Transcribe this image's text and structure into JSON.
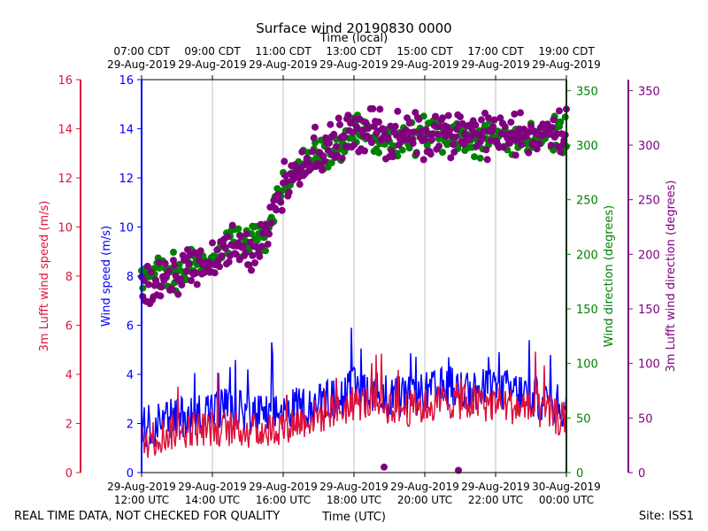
{
  "chart_data": {
    "type": "line",
    "title": "Surface wind 20190830 0000",
    "top_axis_label": "Time (local)",
    "xlabel": "Time (UTC)",
    "footer_left": "REAL TIME DATA, NOT CHECKED FOR QUALITY",
    "footer_right": "Site: ISS1",
    "x_range_hours_utc": [
      12,
      24
    ],
    "x_ticks_utc": [
      {
        "hour": 12,
        "line1": "29-Aug-2019",
        "line2": "12:00 UTC"
      },
      {
        "hour": 14,
        "line1": "29-Aug-2019",
        "line2": "14:00 UTC"
      },
      {
        "hour": 16,
        "line1": "29-Aug-2019",
        "line2": "16:00 UTC"
      },
      {
        "hour": 18,
        "line1": "29-Aug-2019",
        "line2": "18:00 UTC"
      },
      {
        "hour": 20,
        "line1": "29-Aug-2019",
        "line2": "20:00 UTC"
      },
      {
        "hour": 22,
        "line1": "29-Aug-2019",
        "line2": "22:00 UTC"
      },
      {
        "hour": 24,
        "line1": "30-Aug-2019",
        "line2": "00:00 UTC"
      }
    ],
    "x_ticks_local": [
      {
        "hour": 12,
        "line1": "07:00 CDT",
        "line2": "29-Aug-2019"
      },
      {
        "hour": 14,
        "line1": "09:00 CDT",
        "line2": "29-Aug-2019"
      },
      {
        "hour": 16,
        "line1": "11:00 CDT",
        "line2": "29-Aug-2019"
      },
      {
        "hour": 18,
        "line1": "13:00 CDT",
        "line2": "29-Aug-2019"
      },
      {
        "hour": 20,
        "line1": "15:00 CDT",
        "line2": "29-Aug-2019"
      },
      {
        "hour": 22,
        "line1": "17:00 CDT",
        "line2": "29-Aug-2019"
      },
      {
        "hour": 24,
        "line1": "19:00 CDT",
        "line2": "29-Aug-2019"
      }
    ],
    "axes": {
      "speed_lufft": {
        "label": "3m Lufft wind speed (m/s)",
        "ylim": [
          0,
          16
        ],
        "ticks": [
          0,
          2,
          4,
          6,
          8,
          10,
          12,
          14,
          16
        ],
        "color": "#dc143c"
      },
      "speed": {
        "label": "Wind speed (m/s)",
        "ylim": [
          0,
          16
        ],
        "ticks": [
          0,
          2,
          4,
          6,
          8,
          10,
          12,
          14,
          16
        ],
        "color": "#0000ff"
      },
      "direction": {
        "label": "Wind direction (degrees)",
        "ylim": [
          0,
          360
        ],
        "ticks": [
          0,
          50,
          100,
          150,
          200,
          250,
          300,
          350
        ],
        "color": "#008000"
      },
      "direction_lufft": {
        "label": "3m Lufft wind direction (degrees)",
        "ylim": [
          0,
          360
        ],
        "ticks": [
          0,
          50,
          100,
          150,
          200,
          250,
          300,
          350
        ],
        "color": "#800080"
      }
    },
    "series": [
      {
        "name": "Wind speed",
        "kind": "line",
        "axis": "speed",
        "color": "#0000ff",
        "x": [
          12.0,
          12.5,
          13.0,
          13.5,
          14.0,
          14.5,
          15.0,
          15.5,
          16.0,
          16.5,
          17.0,
          17.5,
          18.0,
          18.5,
          19.0,
          19.5,
          20.0,
          20.5,
          21.0,
          21.5,
          22.0,
          22.5,
          23.0,
          23.5,
          24.0
        ],
        "values": [
          1.8,
          2.0,
          2.2,
          2.4,
          2.6,
          2.6,
          2.4,
          2.3,
          2.5,
          2.6,
          2.8,
          3.0,
          3.4,
          3.4,
          3.1,
          3.0,
          3.2,
          3.4,
          3.4,
          3.3,
          3.4,
          3.3,
          3.1,
          2.9,
          2.6
        ],
        "jitter": 0.9
      },
      {
        "name": "3m Lufft wind speed",
        "kind": "line",
        "axis": "speed_lufft",
        "color": "#dc143c",
        "x": [
          12.0,
          12.5,
          13.0,
          13.5,
          14.0,
          14.5,
          15.0,
          15.5,
          16.0,
          16.5,
          17.0,
          17.5,
          18.0,
          18.5,
          19.0,
          19.5,
          20.0,
          20.5,
          21.0,
          21.5,
          22.0,
          22.5,
          23.0,
          23.5,
          24.0
        ],
        "values": [
          1.2,
          1.5,
          1.7,
          1.8,
          1.8,
          1.8,
          1.7,
          1.7,
          1.9,
          2.1,
          2.3,
          2.5,
          2.8,
          2.9,
          2.7,
          2.6,
          2.7,
          2.9,
          2.9,
          2.8,
          2.8,
          2.7,
          2.6,
          2.4,
          2.1
        ],
        "jitter": 0.75
      },
      {
        "name": "Wind direction",
        "kind": "scatter",
        "axis": "direction",
        "color": "#008000",
        "x": [
          12.0,
          12.5,
          13.0,
          13.5,
          14.0,
          14.5,
          15.0,
          15.5,
          16.0,
          16.5,
          17.0,
          17.5,
          18.0,
          18.5,
          19.0,
          19.5,
          20.0,
          20.5,
          21.0,
          21.5,
          22.0,
          22.5,
          23.0,
          23.5,
          24.0
        ],
        "values": [
          180,
          180,
          185,
          190,
          195,
          210,
          210,
          215,
          265,
          280,
          290,
          295,
          310,
          310,
          305,
          305,
          310,
          310,
          305,
          305,
          305,
          305,
          305,
          310,
          310
        ],
        "jitter": 14
      },
      {
        "name": "3m Lufft wind direction",
        "kind": "scatter",
        "axis": "direction_lufft",
        "color": "#800080",
        "x": [
          12.0,
          12.5,
          13.0,
          13.5,
          14.0,
          14.5,
          15.0,
          15.5,
          16.0,
          16.5,
          17.0,
          17.5,
          18.0,
          18.5,
          19.0,
          19.5,
          20.0,
          20.5,
          21.0,
          21.5,
          22.0,
          22.5,
          23.0,
          23.5,
          24.0
        ],
        "values": [
          170,
          175,
          180,
          185,
          190,
          205,
          205,
          215,
          265,
          285,
          295,
          300,
          315,
          315,
          310,
          310,
          310,
          315,
          310,
          310,
          310,
          310,
          310,
          315,
          315
        ],
        "jitter": 18,
        "outliers": [
          {
            "x": 18.85,
            "y": 5
          },
          {
            "x": 20.95,
            "y": 2
          }
        ]
      }
    ]
  }
}
